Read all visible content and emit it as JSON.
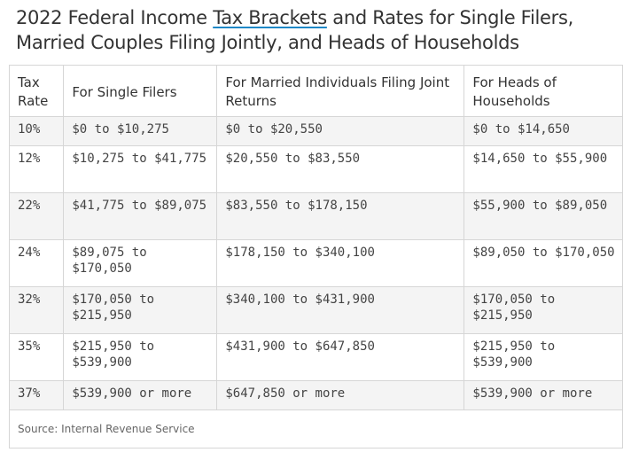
{
  "title": {
    "before": "2022 Federal Income ",
    "link": "Tax Brackets",
    "after": " and Rates for Single Filers, Married Couples Filing Jointly, and Heads of Households"
  },
  "headers": [
    "Tax Rate",
    "For Single Filers",
    "For Married Individuals Filing Joint Returns",
    "For Heads of Households"
  ],
  "rows": [
    [
      "10%",
      "$0 to $10,275",
      "$0 to $20,550",
      "$0 to $14,650"
    ],
    [
      "12%",
      "$10,275 to $41,775",
      "$20,550 to $83,550",
      "$14,650 to $55,900"
    ],
    [
      "22%",
      "$41,775 to $89,075",
      "$83,550 to $178,150",
      "$55,900 to $89,050"
    ],
    [
      "24%",
      "$89,075 to $170,050",
      "$178,150 to $340,100",
      "$89,050 to $170,050"
    ],
    [
      "32%",
      "$170,050 to $215,950",
      "$340,100 to $431,900",
      "$170,050 to $215,950"
    ],
    [
      "35%",
      "$215,950 to $539,900",
      "$431,900 to $647,850",
      "$215,950 to $539,900"
    ],
    [
      "37%",
      "$539,900 or more",
      "$647,850 or more",
      "$539,900 or more"
    ]
  ],
  "source": "Source: Internal Revenue Service",
  "colors": {
    "link_underline": "#1e88c7",
    "stripe": "#f4f4f4",
    "border": "#d6d6d6"
  }
}
